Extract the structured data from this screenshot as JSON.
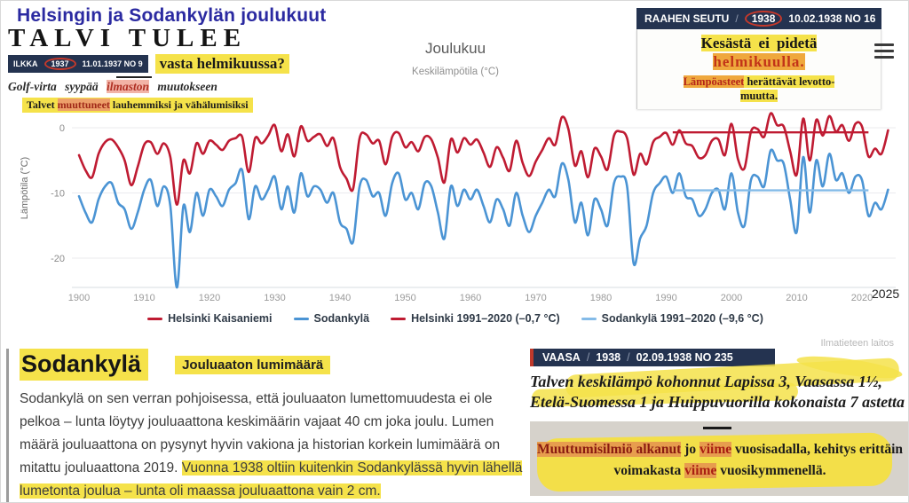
{
  "page": {
    "title": "Helsingin ja Sodankylän joulukuut"
  },
  "clippings": {
    "ilkka": {
      "headline": "TALVI TULEE",
      "source": "ILKKA",
      "year": "1937",
      "issue": "11.01.1937 NO 9",
      "subhead": "vasta helmikuussa?",
      "line3a": "Golf-virta syypää ",
      "line3b": "ilmaston",
      "line3c": " muutokseen",
      "line4a": "Talvet ",
      "line4b": "muuttuneet",
      "line4c": " lauhemmiksi ja vähälumisiksi"
    },
    "raahe": {
      "source": "RAAHEN SEUTU",
      "separator": "/",
      "year": "1938",
      "issue": "10.02.1938 NO 16",
      "line1": "Kesästä ei pidetä",
      "line2": "helmikuulla.",
      "line3a": "Lämpöasteet",
      "line3b": " herättävät levotto-",
      "line4": "muutta."
    },
    "vaasa": {
      "source": "VAASA",
      "separator": "/",
      "year": "1938",
      "issue": "02.09.1938 NO 235",
      "headline1": "Talven keskilämpö kohonnut Lapissa 3, Vaasassa 1½,",
      "headline2": "Etelä-Suomessa 1 ja Huippuvuorilla kokonaista 7 astetta",
      "note1": "Muuttumisilmiö alkanut",
      "note2": " jo ",
      "note3": "viime",
      "note4": " vuosisadalla,",
      "note5": " kehitys erittäin",
      "note6": "voimakasta ",
      "note7": "viime",
      "note8": " vuosikymmenellä."
    }
  },
  "sodankyla_block": {
    "heading": "Sodankylä",
    "subheading": "Jouluaaton lumimäärä",
    "para_normal": "Sodankylä on sen verran pohjoisessa, että jouluaaton lumettomuudesta ei ole pelkoa – lunta löytyy jouluaattona keskimäärin vajaat 40 cm joka joulu. Lumen määrä jouluaattona on pysynyt hyvin vakiona ja historian korkein lumimäärä on mitattu jouluaattona 2019. ",
    "para_highlight": "Vuonna 1938 oltiin kuitenkin Sodankylässä hyvin lähellä lumetonta joulua – lunta oli maassa jouluaattona vain 2 cm."
  },
  "attribution": "Ilmatieteen laitos",
  "annotation_2025": "2025",
  "menu_icon": "hamburger-icon",
  "chart_data": {
    "type": "line",
    "title": "Joulukuu",
    "subtitle": "Keskilämpötila (°C)",
    "ylabel": "Lämpötila (°C)",
    "xlabel": "",
    "x_range": [
      1900,
      2024
    ],
    "ylim": [
      -25,
      3
    ],
    "x_ticks": [
      1900,
      1910,
      1920,
      1930,
      1940,
      1950,
      1960,
      1970,
      1980,
      1990,
      2000,
      2010,
      2020
    ],
    "y_ticks": [
      0,
      -10,
      -20
    ],
    "grid": "horizontal",
    "legend_position": "bottom",
    "series": [
      {
        "name": "Helsinki Kaisaniemi",
        "color": "#bf1b32",
        "values": [
          -4.2,
          -6.5,
          -7.6,
          -4.0,
          -2.2,
          -1.8,
          -3.0,
          -5.0,
          -8.8,
          -6.0,
          -2.6,
          -2.2,
          -4.0,
          -2.4,
          -4.5,
          -11.8,
          -5.0,
          -7.0,
          -2.4,
          -4.0,
          -2.0,
          -2.6,
          -3.4,
          -2.0,
          -1.6,
          -1.4,
          -6.8,
          -1.6,
          -2.4,
          -1.2,
          0.4,
          -3.6,
          -1.0,
          -4.4,
          0.2,
          -2.0,
          -1.4,
          -1.0,
          -2.8,
          -1.6,
          -6.0,
          -7.8,
          -9.4,
          -1.6,
          -1.0,
          -2.4,
          -2.0,
          -5.6,
          -1.4,
          -0.8,
          -3.0,
          -2.2,
          -3.6,
          -1.4,
          -1.8,
          -4.6,
          -8.4,
          -1.8,
          -3.8,
          -1.6,
          -2.6,
          -1.8,
          -3.8,
          -6.0,
          -3.0,
          -4.6,
          -6.6,
          -2.0,
          -5.4,
          -7.4,
          -5.2,
          -3.4,
          -1.6,
          -2.6,
          1.6,
          -0.2,
          -5.8,
          -3.6,
          -7.6,
          -3.2,
          -4.4,
          -6.4,
          -1.2,
          -0.6,
          -1.6,
          -7.2,
          -4.0,
          -5.6,
          -2.2,
          -1.4,
          -0.8,
          -2.6,
          -0.4,
          -2.4,
          -2.8,
          -4.6,
          -4.2,
          -2.0,
          -1.8,
          -4.2,
          0.6,
          -4.8,
          -6.2,
          -0.6,
          -0.2,
          -1.4,
          2.2,
          0.4,
          0.2,
          -3.6,
          -7.2,
          1.4,
          -5.0,
          1.2,
          -1.2,
          1.8,
          -0.6,
          0.4,
          -2.0,
          0.6,
          0.2,
          -4.4,
          -3.2,
          -4.0,
          -0.4
        ]
      },
      {
        "name": "Sodankylä",
        "color": "#4b94d4",
        "values": [
          -10.5,
          -13.0,
          -14.5,
          -11.0,
          -9.0,
          -8.5,
          -11.5,
          -12.5,
          -15.5,
          -13.0,
          -9.5,
          -8.0,
          -12.0,
          -9.0,
          -12.0,
          -24.5,
          -12.0,
          -16.0,
          -10.0,
          -13.5,
          -9.5,
          -10.5,
          -12.0,
          -9.5,
          -8.5,
          -6.5,
          -14.0,
          -9.0,
          -11.0,
          -9.5,
          -7.5,
          -12.5,
          -9.0,
          -13.0,
          -7.0,
          -10.5,
          -9.0,
          -9.5,
          -11.5,
          -10.0,
          -14.5,
          -15.5,
          -17.5,
          -9.0,
          -8.0,
          -10.5,
          -10.0,
          -13.5,
          -8.5,
          -7.0,
          -11.0,
          -10.0,
          -12.5,
          -8.5,
          -9.0,
          -13.0,
          -17.0,
          -9.0,
          -12.0,
          -9.5,
          -11.0,
          -9.5,
          -12.0,
          -14.5,
          -11.0,
          -12.5,
          -15.0,
          -10.0,
          -13.5,
          -16.0,
          -13.5,
          -11.5,
          -9.5,
          -10.5,
          -5.5,
          -8.0,
          -14.5,
          -11.5,
          -16.5,
          -11.0,
          -12.5,
          -15.0,
          -8.5,
          -7.5,
          -9.0,
          -20.8,
          -17.0,
          -15.0,
          -10.0,
          -8.5,
          -7.5,
          -10.0,
          -7.0,
          -10.5,
          -11.0,
          -13.5,
          -12.5,
          -10.0,
          -9.5,
          -12.5,
          -7.0,
          -13.0,
          -15.0,
          -8.0,
          -7.5,
          -9.0,
          -3.5,
          -5.0,
          -5.5,
          -11.0,
          -16.0,
          -4.5,
          -13.0,
          -5.0,
          -9.0,
          -4.0,
          -8.0,
          -7.0,
          -10.0,
          -7.5,
          -8.0,
          -13.5,
          -11.5,
          -12.5,
          -9.5
        ]
      }
    ],
    "reference_lines": [
      {
        "name": "Helsinki 1991–2020 (–0,7 °C)",
        "color": "#bf1b32",
        "value": -0.7,
        "x_start": 1991,
        "x_end": 2021
      },
      {
        "name": "Sodankylä 1991–2020 (–9,6 °C)",
        "color": "#84bbe8",
        "value": -9.6,
        "x_start": 1991,
        "x_end": 2021
      }
    ]
  }
}
